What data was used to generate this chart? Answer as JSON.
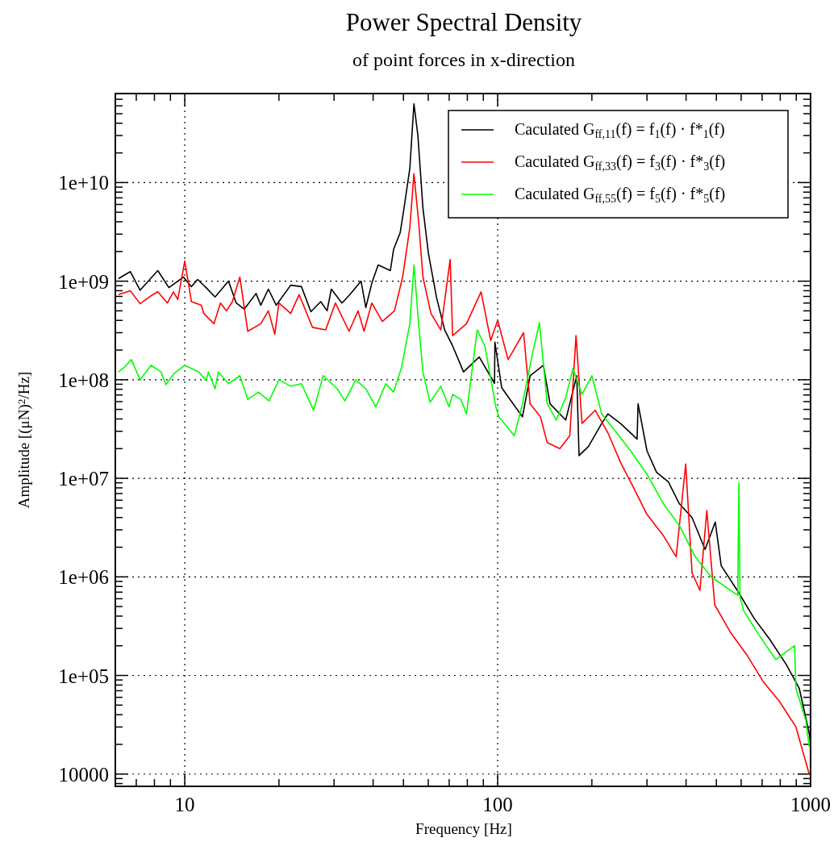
{
  "chart_data": {
    "type": "line",
    "title": "Power Spectral Density",
    "subtitle": "of point forces in x-direction",
    "xlabel": "Frequency [Hz]",
    "ylabel": "Amplitude [(μN)$^{2}$/Hz]",
    "log": "xy",
    "grid": true,
    "legend": "top right",
    "line_style": "solid",
    "xlim": [
      6,
      1000
    ],
    "ylim": [
      7500,
      80000000000.0
    ],
    "xticks": [
      {
        "value": 7,
        "label": null
      },
      {
        "value": 8,
        "label": null
      },
      {
        "value": 9,
        "label": null
      },
      10,
      {
        "value": 20,
        "label": null
      },
      {
        "value": 30,
        "label": null
      },
      {
        "value": 40,
        "label": null
      },
      {
        "value": 50,
        "label": null
      },
      {
        "value": 60,
        "label": null
      },
      {
        "value": 70,
        "label": null
      },
      {
        "value": 80,
        "label": null
      },
      {
        "value": 90,
        "label": null
      },
      100,
      {
        "value": 200,
        "label": null
      },
      {
        "value": 300,
        "label": null
      },
      {
        "value": 400,
        "label": null
      },
      {
        "value": 500,
        "label": null
      },
      {
        "value": 600,
        "label": null
      },
      {
        "value": 700,
        "label": null
      },
      {
        "value": 800,
        "label": null
      },
      {
        "value": 900,
        "label": null
      },
      1000
    ],
    "yticks": [
      {
        "value": 8000,
        "label": null
      },
      {
        "value": 9000,
        "label": null
      },
      10000,
      {
        "value": 20000,
        "label": null
      },
      {
        "value": 30000,
        "label": null
      },
      {
        "value": 40000,
        "label": null
      },
      {
        "value": 50000,
        "label": null
      },
      {
        "value": 60000,
        "label": null
      },
      {
        "value": 70000,
        "label": null
      },
      {
        "value": 80000,
        "label": null
      },
      {
        "value": 90000,
        "label": null
      },
      {
        "value": 100000,
        "label": "1e+05"
      },
      {
        "value": 200000,
        "label": null
      },
      {
        "value": 300000,
        "label": null
      },
      {
        "value": 400000,
        "label": null
      },
      {
        "value": 500000,
        "label": null
      },
      {
        "value": 600000,
        "label": null
      },
      {
        "value": 700000,
        "label": null
      },
      {
        "value": 800000,
        "label": null
      },
      {
        "value": 900000,
        "label": null
      },
      {
        "value": 1000000,
        "label": "1e+06"
      },
      {
        "value": 2000000,
        "label": null
      },
      {
        "value": 3000000,
        "label": null
      },
      {
        "value": 4000000,
        "label": null
      },
      {
        "value": 5000000,
        "label": null
      },
      {
        "value": 6000000,
        "label": null
      },
      {
        "value": 7000000,
        "label": null
      },
      {
        "value": 8000000,
        "label": null
      },
      {
        "value": 9000000,
        "label": null
      },
      {
        "value": 10000000,
        "label": "1e+07"
      },
      {
        "value": 20000000,
        "label": null
      },
      {
        "value": 30000000,
        "label": null
      },
      {
        "value": 40000000,
        "label": null
      },
      {
        "value": 50000000,
        "label": null
      },
      {
        "value": 60000000,
        "label": null
      },
      {
        "value": 70000000,
        "label": null
      },
      {
        "value": 80000000,
        "label": null
      },
      {
        "value": 90000000,
        "label": null
      },
      {
        "value": 100000000,
        "label": "1e+08"
      },
      {
        "value": 200000000,
        "label": null
      },
      {
        "value": 300000000,
        "label": null
      },
      {
        "value": 400000000,
        "label": null
      },
      {
        "value": 500000000,
        "label": null
      },
      {
        "value": 600000000,
        "label": null
      },
      {
        "value": 700000000,
        "label": null
      },
      {
        "value": 800000000,
        "label": null
      },
      {
        "value": 900000000,
        "label": null
      },
      {
        "value": 1000000000,
        "label": "1e+09"
      },
      {
        "value": 2000000000,
        "label": null
      },
      {
        "value": 3000000000,
        "label": null
      },
      {
        "value": 4000000000,
        "label": null
      },
      {
        "value": 5000000000,
        "label": null
      },
      {
        "value": 6000000000,
        "label": null
      },
      {
        "value": 7000000000,
        "label": null
      },
      {
        "value": 8000000000,
        "label": null
      },
      {
        "value": 9000000000,
        "label": null
      },
      {
        "value": 10000000000,
        "label": "1e+10"
      },
      {
        "value": 20000000000,
        "label": null
      },
      {
        "value": 30000000000,
        "label": null
      },
      {
        "value": 40000000000,
        "label": null
      },
      {
        "value": 50000000000,
        "label": null
      },
      {
        "value": 60000000000,
        "label": null
      },
      {
        "value": 70000000000,
        "label": null
      }
    ],
    "series": [
      {
        "name": "Caculated G$_{ff,11}$(f) = f$_{1}$(f) · f*$_{1}$(f)",
        "color": "#000000",
        "x": [
          6.14,
          6.7,
          7.2,
          8.2,
          8.9,
          9.9,
          10.5,
          11,
          11.7,
          12.5,
          13.8,
          14.6,
          15.5,
          16.9,
          17.5,
          18.5,
          19.6,
          21.8,
          23.6,
          25.3,
          27.2,
          28.5,
          29.4,
          31.8,
          33.7,
          36.6,
          37.9,
          39.6,
          41.5,
          45.4,
          46.5,
          48.8,
          50.2,
          52.4,
          54,
          55.6,
          57.7,
          60.1,
          63.8,
          67.7,
          71.8,
          77.8,
          87.3,
          97.7,
          98,
          103,
          120,
          127,
          140,
          147,
          165,
          179,
          182,
          195,
          215,
          225,
          247,
          279,
          281,
          300,
          322,
          351,
          381,
          418,
          460,
          496,
          518,
          583,
          660,
          742,
          835,
          920,
          990,
          1000
        ],
        "values": [
          1060000000.0,
          1250000000.0,
          810000000.0,
          1280000000.0,
          860000000.0,
          1100000000.0,
          880000000.0,
          1040000000.0,
          860000000.0,
          690000000.0,
          1000000000.0,
          600000000.0,
          520000000.0,
          750000000.0,
          570000000.0,
          830000000.0,
          570000000.0,
          910000000.0,
          880000000.0,
          490000000.0,
          620000000.0,
          500000000.0,
          830000000.0,
          600000000.0,
          730000000.0,
          1000000000.0,
          540000000.0,
          950000000.0,
          1460000000.0,
          1280000000.0,
          2100000000.0,
          3100000000.0,
          5500000000.0,
          14000000000.0,
          63000000000.0,
          30000000000.0,
          5500000000.0,
          1900000000.0,
          680000000.0,
          320000000.0,
          220000000.0,
          120000000.0,
          170000000.0,
          92000000.0,
          240000000.0,
          83000000.0,
          42000000.0,
          110000000.0,
          140000000.0,
          57000000.0,
          39000000.0,
          110000000.0,
          17000000.0,
          21000000.0,
          36000000.0,
          45000000.0,
          36000000.0,
          25000000.0,
          57000000.0,
          19000000.0,
          11500000.0,
          9200000.0,
          5500000.0,
          4000000.0,
          1900000.0,
          3600000.0,
          1300000.0,
          730000.0,
          380000.0,
          230000.0,
          130000.0,
          74000.0,
          26000.0,
          20000.0
        ]
      },
      {
        "name": "Caculated G$_{ff,33}$(f) = f$_{3}$(f) · f*$_{3}$(f)",
        "color": "#ff0000",
        "x": [
          6.14,
          6.7,
          7.2,
          7.8,
          8.2,
          8.8,
          9.2,
          9.5,
          10,
          10.5,
          11.3,
          11.5,
          12.4,
          13,
          13.6,
          14.2,
          15,
          15.9,
          17.5,
          18.5,
          19.4,
          20,
          21.8,
          23.2,
          25.6,
          28.2,
          30.3,
          33.5,
          35.8,
          37.4,
          39.6,
          42.8,
          46.8,
          49.7,
          52.4,
          54,
          55.9,
          57.7,
          61.2,
          65.8,
          70.5,
          71.8,
          79.5,
          88.5,
          95,
          100,
          108,
          121,
          127,
          137,
          144,
          158,
          170,
          178,
          186,
          205,
          225,
          247,
          272,
          300,
          339,
          372,
          399,
          418,
          443,
          466,
          494,
          556,
          627,
          705,
          794,
          898,
          990
        ],
        "values": [
          730000000.0,
          800000000.0,
          590000000.0,
          710000000.0,
          780000000.0,
          600000000.0,
          780000000.0,
          650000000.0,
          1600000000.0,
          620000000.0,
          570000000.0,
          470000000.0,
          370000000.0,
          600000000.0,
          500000000.0,
          620000000.0,
          1100000000.0,
          310000000.0,
          370000000.0,
          500000000.0,
          290000000.0,
          600000000.0,
          470000000.0,
          730000000.0,
          340000000.0,
          320000000.0,
          600000000.0,
          310000000.0,
          500000000.0,
          310000000.0,
          600000000.0,
          390000000.0,
          500000000.0,
          1100000000.0,
          3500000000.0,
          12300000000.0,
          4000000000.0,
          1100000000.0,
          470000000.0,
          320000000.0,
          1660000000.0,
          280000000.0,
          370000000.0,
          780000000.0,
          250000000.0,
          400000000.0,
          160000000.0,
          300000000.0,
          57000000.0,
          42000000.0,
          23000000.0,
          20000000.0,
          27000000.0,
          280000000.0,
          36000000.0,
          49000000.0,
          29000000.0,
          14500000.0,
          8000000.0,
          4300000.0,
          2600000.0,
          1600000.0,
          14000000.0,
          1100000.0,
          730000.0,
          4700000.0,
          520000.0,
          270000.0,
          160000.0,
          87000.0,
          55000.0,
          30000.0,
          10000.0
        ]
      },
      {
        "name": "Caculated G$_{ff,55}$(f) = f$_{5}$(f) · f*$_{5}$(f)",
        "color": "#00ff00",
        "x": [
          6.14,
          6.4,
          6.75,
          7.2,
          7.8,
          8.4,
          8.7,
          9.2,
          10,
          11.1,
          11.7,
          11.9,
          12.5,
          12.8,
          13.8,
          15,
          15.9,
          17.2,
          18.6,
          20,
          21.8,
          23.6,
          25.8,
          27.7,
          30.7,
          32.5,
          35.2,
          37.9,
          40.8,
          43.9,
          46.5,
          49.3,
          52.4,
          54,
          55.9,
          57.7,
          60.8,
          65.8,
          69.9,
          71.8,
          76.3,
          79.5,
          86,
          91,
          98.8,
          101,
          113,
          120,
          129,
          136,
          144,
          154,
          165,
          174,
          186,
          200,
          215,
          236,
          266,
          300,
          339,
          381,
          428,
          481,
          585,
          590,
          595,
          612,
          688,
          774,
          889,
          898,
          966,
          990
        ],
        "values": [
          120000000.0,
          133000000.0,
          160000000.0,
          100000000.0,
          140000000.0,
          120000000.0,
          89000000.0,
          114000000.0,
          140000000.0,
          120000000.0,
          98000000.0,
          120000000.0,
          81000000.0,
          120000000.0,
          91000000.0,
          110000000.0,
          63000000.0,
          75000000.0,
          61000000.0,
          100000000.0,
          86000000.0,
          91000000.0,
          49000000.0,
          110000000.0,
          81000000.0,
          61000000.0,
          100000000.0,
          81000000.0,
          53000000.0,
          91000000.0,
          75000000.0,
          133000000.0,
          370000000.0,
          1460000000.0,
          370000000.0,
          120000000.0,
          59000000.0,
          86000000.0,
          53000000.0,
          71000000.0,
          63000000.0,
          45000000.0,
          320000000.0,
          220000000.0,
          52000000.0,
          42000000.0,
          27000000.0,
          57000000.0,
          180000000.0,
          380000000.0,
          57000000.0,
          39000000.0,
          66000000.0,
          130000000.0,
          71000000.0,
          110000000.0,
          45000000.0,
          31000000.0,
          19000000.0,
          11000000.0,
          5500000.0,
          3300000.0,
          1600000.0,
          1000000.0,
          650000.0,
          9000000.0,
          620000.0,
          450000.0,
          250000.0,
          145000.0,
          200000.0,
          74000.0,
          35000.0,
          19000.0
        ]
      }
    ]
  }
}
